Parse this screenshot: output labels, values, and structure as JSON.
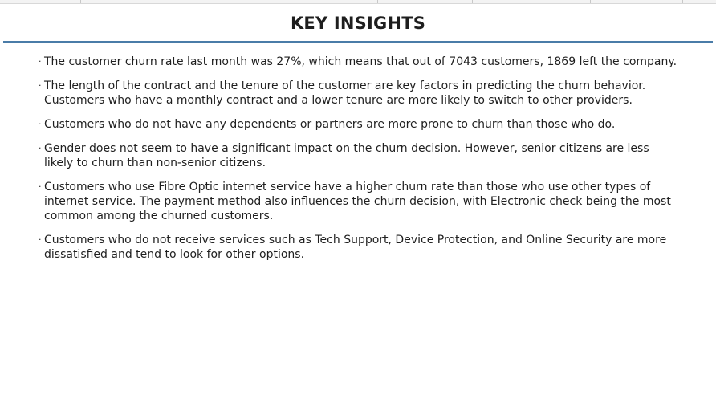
{
  "header": {
    "title": "KEY INSIGHTS"
  },
  "insights": [
    "The customer churn rate last month was 27%, which means that out of 7043 customers, 1869 left the company.",
    "The length of the contract and the tenure of the customer are key factors in predicting the churn behavior. Customers who have a monthly contract and a lower tenure are more likely to switch to other providers.",
    "Customers who do not have any dependents or partners are more prone to churn than those who do.",
    "Gender does not seem to have a significant impact on the churn decision. However, senior citizens are less likely to churn than non-senior citizens.",
    "Customers who use Fibre Optic internet service have a higher churn rate than those who use other types of internet service. The payment method also influences the churn decision, with Electronic check being the most common among the churned customers.",
    "Customers who do not receive services such as Tech Support, Device Protection, and Online Security are more dissatisfied and tend to look for other options."
  ],
  "bullet_char": "·"
}
